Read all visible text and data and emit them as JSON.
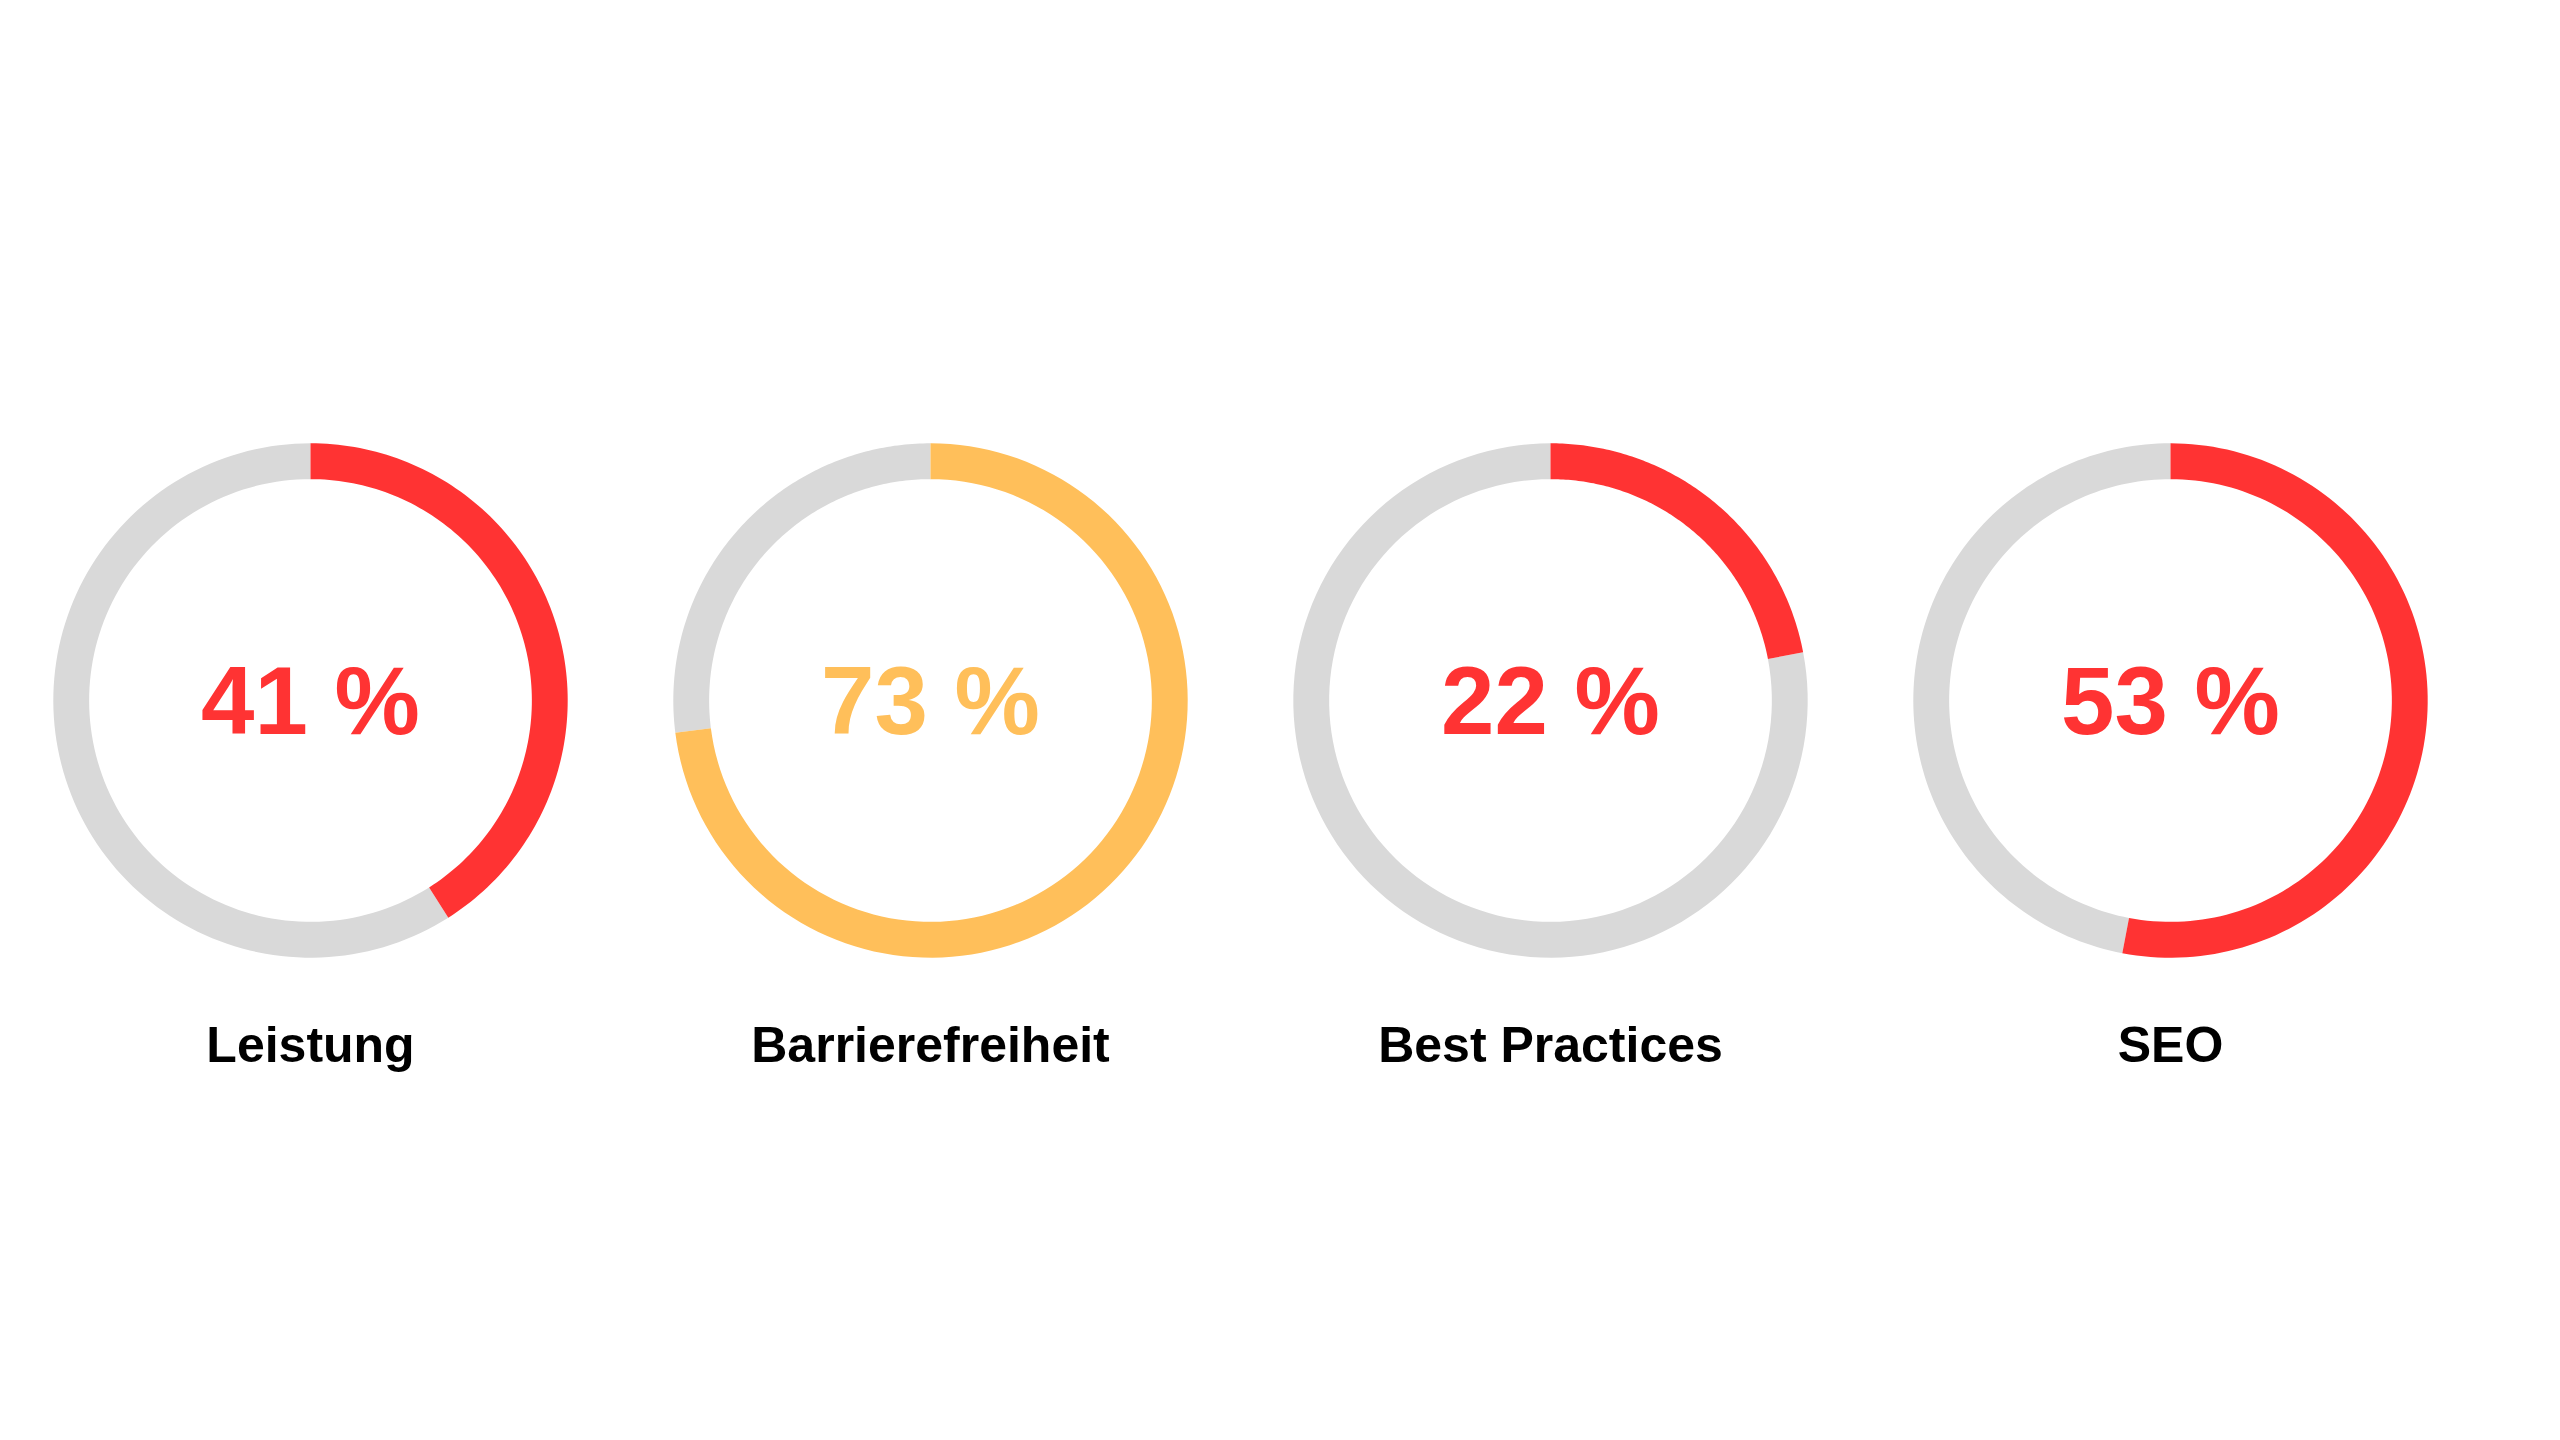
{
  "chart_data": [
    {
      "type": "donut",
      "title": "Leistung",
      "categories": [
        null,
        null
      ],
      "values": [
        41,
        59
      ],
      "colors": [
        "#ff3333",
        "#d9d9d9"
      ],
      "annotations": [
        "41 %"
      ]
    },
    {
      "type": "donut",
      "title": "Barrierefreiheit",
      "categories": [
        null,
        null
      ],
      "values": [
        73,
        27
      ],
      "colors": [
        "#ffbf5a",
        "#d9d9d9"
      ],
      "annotations": [
        "73 %"
      ]
    },
    {
      "type": "donut",
      "title": "Best Practices",
      "categories": [
        null,
        null
      ],
      "values": [
        22,
        78
      ],
      "colors": [
        "#ff3333",
        "#d9d9d9"
      ],
      "annotations": [
        "22 %"
      ]
    },
    {
      "type": "donut",
      "title": "SEO",
      "categories": [
        null,
        null
      ],
      "values": [
        53,
        47
      ],
      "colors": [
        "#ff3333",
        "#d9d9d9"
      ],
      "annotations": [
        "53 %"
      ]
    }
  ]
}
